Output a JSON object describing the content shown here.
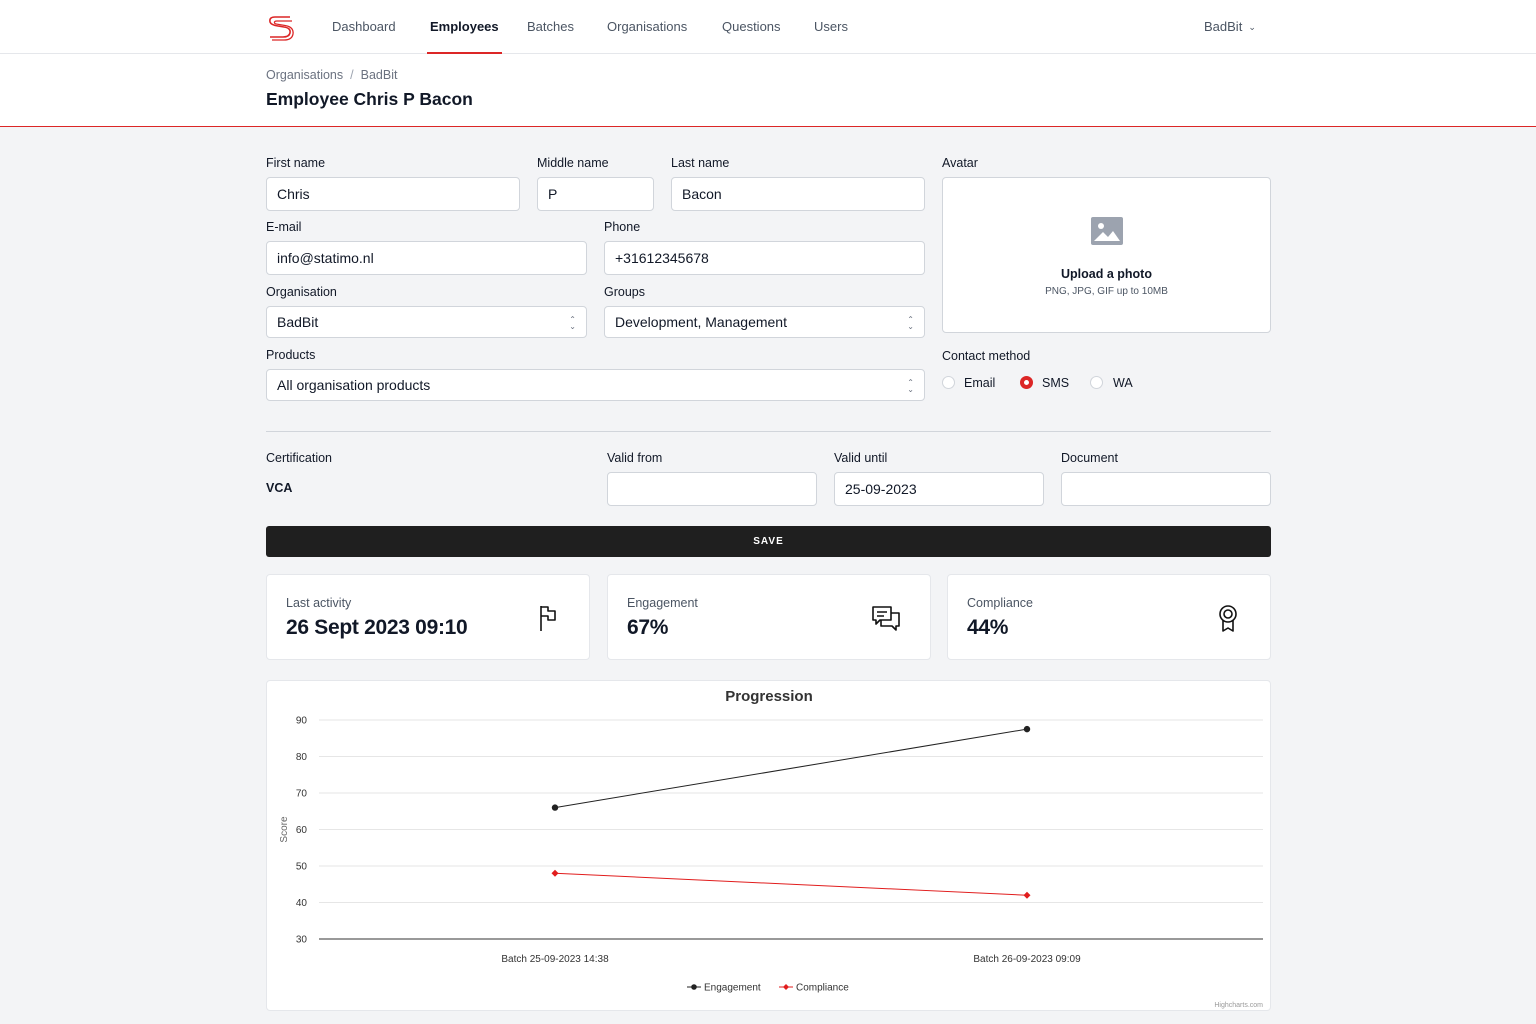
{
  "nav": {
    "items": [
      "Dashboard",
      "Employees",
      "Batches",
      "Organisations",
      "Questions",
      "Users"
    ],
    "active": "Employees",
    "user": "BadBit"
  },
  "header": {
    "breadcrumb": [
      "Organisations",
      "BadBit"
    ],
    "title": "Employee Chris P Bacon"
  },
  "form": {
    "first_name_label": "First name",
    "first_name": "Chris",
    "middle_name_label": "Middle name",
    "middle_name": "P",
    "last_name_label": "Last name",
    "last_name": "Bacon",
    "email_label": "E-mail",
    "email": "info@statimo.nl",
    "phone_label": "Phone",
    "phone": "+31612345678",
    "organisation_label": "Organisation",
    "organisation": "BadBit",
    "groups_label": "Groups",
    "groups": "Development, Management",
    "products_label": "Products",
    "products": "All organisation products",
    "avatar_label": "Avatar",
    "avatar_upload": "Upload a photo",
    "avatar_hint": "PNG, JPG, GIF up to 10MB",
    "contact_label": "Contact method",
    "contact_options": [
      "Email",
      "SMS",
      "WA"
    ],
    "contact_selected": "SMS"
  },
  "certification": {
    "cert_label": "Certification",
    "cert_value": "VCA",
    "valid_from_label": "Valid from",
    "valid_from": "",
    "valid_until_label": "Valid until",
    "valid_until": "25-09-2023",
    "document_label": "Document",
    "document": ""
  },
  "save_label": "SAVE",
  "stats": [
    {
      "label": "Last activity",
      "value": "26 Sept 2023 09:10",
      "icon": "flag-icon"
    },
    {
      "label": "Engagement",
      "value": "67%",
      "icon": "chat-icon"
    },
    {
      "label": "Compliance",
      "value": "44%",
      "icon": "award-icon"
    }
  ],
  "colors": {
    "accent": "#dc2626",
    "dark": "#1f1f1f",
    "engagement": "#222222",
    "compliance": "#e11d1d"
  },
  "chart_data": {
    "type": "line",
    "title": "Progression",
    "ylabel": "Score",
    "xlabel": "",
    "categories": [
      "Batch 25-09-2023 14:38",
      "Batch 26-09-2023 09:09"
    ],
    "yticks": [
      30,
      40,
      50,
      60,
      70,
      80,
      90
    ],
    "ylim": [
      30,
      90
    ],
    "grid": true,
    "legend": "bottom-center",
    "credit": "Highcharts.com",
    "series": [
      {
        "name": "Engagement",
        "values": [
          66,
          87.5
        ],
        "color": "#222222",
        "marker": "circle"
      },
      {
        "name": "Compliance",
        "values": [
          48,
          42
        ],
        "color": "#e11d1d",
        "marker": "diamond"
      }
    ]
  }
}
